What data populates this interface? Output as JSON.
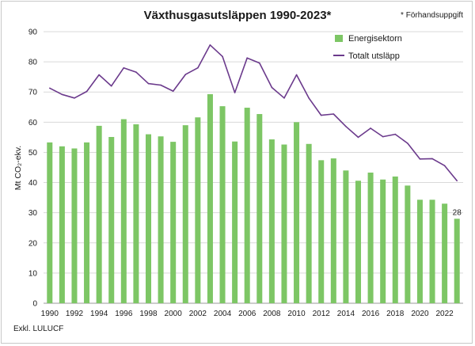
{
  "chart_data": {
    "type": "bar",
    "title": "Växthusgasutsläppen 1990-2023*",
    "note": "* Förhandsuppgift",
    "footnote": "Exkl. LULUCF",
    "ylabel": "Mt CO₂-ekv.",
    "ylim": [
      0,
      90
    ],
    "yticks": [
      0,
      10,
      20,
      30,
      40,
      50,
      60,
      70,
      80,
      90
    ],
    "xtick_labels": [
      "1990",
      "1992",
      "1994",
      "1996",
      "1998",
      "2000",
      "2002",
      "2004",
      "2006",
      "2008",
      "2010",
      "2012",
      "2014",
      "2016",
      "2018",
      "2020",
      "2022"
    ],
    "grid": true,
    "legend_position": "top-right",
    "categories": [
      "1990",
      "1991",
      "1992",
      "1993",
      "1994",
      "1995",
      "1996",
      "1997",
      "1998",
      "1999",
      "2000",
      "2001",
      "2002",
      "2003",
      "2004",
      "2005",
      "2006",
      "2007",
      "2008",
      "2009",
      "2010",
      "2011",
      "2012",
      "2013",
      "2014",
      "2015",
      "2016",
      "2017",
      "2018",
      "2019",
      "2020",
      "2021",
      "2022",
      "2023"
    ],
    "series": [
      {
        "name": "Energisektorn",
        "kind": "bar",
        "color": "#7dc665",
        "values": [
          53.3,
          52.0,
          51.3,
          53.3,
          58.8,
          55.1,
          61.0,
          59.3,
          56.0,
          55.3,
          53.5,
          59.0,
          61.6,
          69.3,
          65.3,
          53.6,
          64.8,
          62.7,
          54.3,
          52.6,
          60.0,
          52.8,
          47.4,
          48.0,
          44.0,
          40.6,
          43.3,
          41.0,
          42.0,
          39.0,
          34.3,
          34.3,
          33.0,
          28.0
        ]
      },
      {
        "name": "Totalt utsläpp",
        "kind": "line",
        "color": "#6b3a8c",
        "values": [
          71.3,
          69.2,
          68.0,
          70.2,
          75.7,
          72.0,
          78.0,
          76.6,
          72.8,
          72.3,
          70.3,
          75.8,
          78.0,
          85.6,
          81.8,
          69.8,
          81.3,
          79.6,
          71.5,
          68.0,
          75.7,
          68.0,
          62.3,
          62.7,
          58.6,
          55.0,
          58.0,
          55.2,
          56.0,
          53.0,
          47.8,
          47.9,
          45.6,
          40.6
        ]
      }
    ],
    "data_labels": [
      {
        "category": "2023",
        "series": "Energisektorn",
        "text": "28"
      }
    ]
  }
}
